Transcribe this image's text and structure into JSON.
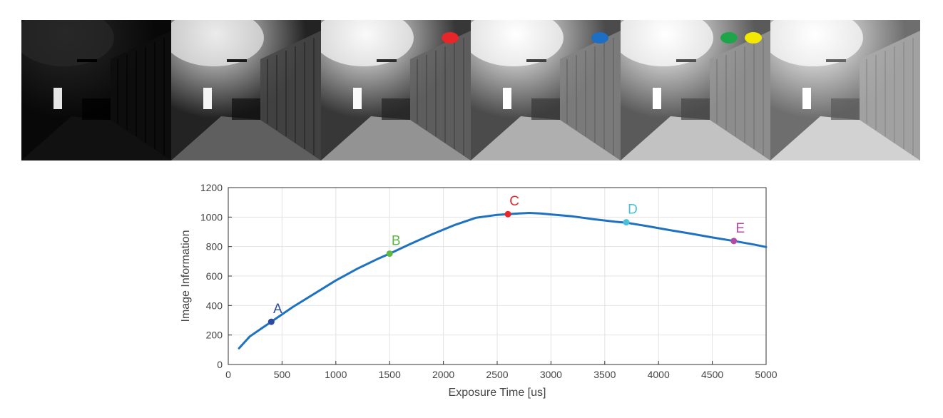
{
  "frames": [
    {
      "brightness": "dark",
      "markers": []
    },
    {
      "brightness": "dim",
      "markers": []
    },
    {
      "brightness": "medium",
      "markers": [
        {
          "color": "#e8262a"
        }
      ]
    },
    {
      "brightness": "bright",
      "markers": [
        {
          "color": "#1c6fc4"
        }
      ]
    },
    {
      "brightness": "brighter",
      "markers": [
        {
          "color": "#1ea54a"
        },
        {
          "color": "#f2e800"
        }
      ]
    },
    {
      "brightness": "brightest",
      "markers": []
    }
  ],
  "chart_data": {
    "type": "line",
    "title": "",
    "xlabel": "Exposure Time [us]",
    "ylabel": "Image Information",
    "xlim": [
      0,
      5000
    ],
    "ylim": [
      0,
      1200
    ],
    "xticks": [
      0,
      500,
      1000,
      1500,
      2000,
      2500,
      3000,
      3500,
      4000,
      4500,
      5000
    ],
    "yticks": [
      0,
      200,
      400,
      600,
      800,
      1000,
      1200
    ],
    "grid": true,
    "series": [
      {
        "color": "#1f72c0",
        "x": [
          100,
          150,
          200,
          300,
          400,
          600,
          800,
          1000,
          1200,
          1400,
          1500,
          1700,
          1900,
          2100,
          2300,
          2500,
          2600,
          2700,
          2800,
          2900,
          3000,
          3200,
          3400,
          3600,
          3700,
          3900,
          4100,
          4300,
          4500,
          4700,
          4900,
          5000
        ],
        "y": [
          110,
          150,
          190,
          240,
          290,
          390,
          480,
          570,
          650,
          720,
          752,
          820,
          885,
          945,
          995,
          1015,
          1020,
          1025,
          1028,
          1025,
          1018,
          1005,
          985,
          968,
          962,
          938,
          912,
          888,
          862,
          838,
          812,
          797
        ]
      }
    ],
    "annotations": [
      {
        "label": "A",
        "x": 400,
        "y": 290,
        "color": "#2c4aa0"
      },
      {
        "label": "B",
        "x": 1500,
        "y": 752,
        "color": "#5fb845"
      },
      {
        "label": "C",
        "x": 2600,
        "y": 1020,
        "color": "#e8262a"
      },
      {
        "label": "D",
        "x": 3700,
        "y": 965,
        "color": "#48c0d8"
      },
      {
        "label": "E",
        "x": 4700,
        "y": 838,
        "color": "#b04aa6"
      }
    ]
  }
}
